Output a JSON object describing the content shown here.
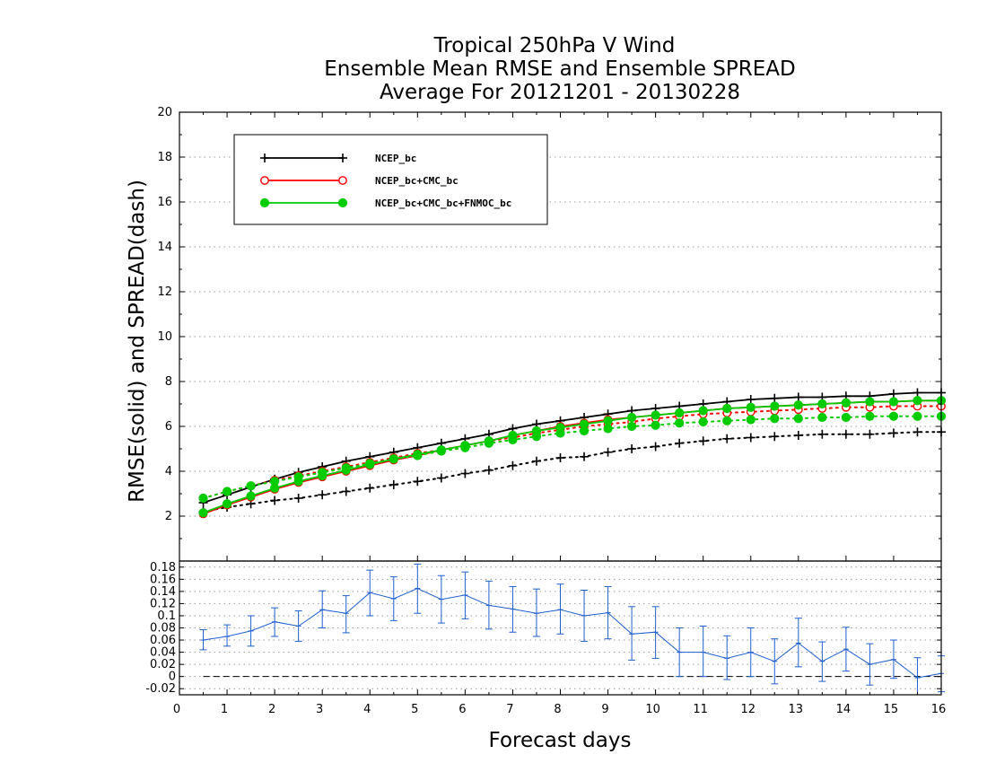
{
  "chart_data": {
    "type": "line",
    "title_lines": [
      "Tropical 250hPa V Wind",
      "Ensemble Mean RMSE and Ensemble SPREAD",
      "Average For 20121201 - 20130228"
    ],
    "xlabel": "Forecast days",
    "ylabel": "RMSE(solid) and SPREAD(dash)",
    "xlim": [
      0,
      16
    ],
    "ylim": [
      0,
      20
    ],
    "xticks": [
      "0",
      "1",
      "2",
      "3",
      "4",
      "5",
      "6",
      "7",
      "8",
      "9",
      "10",
      "11",
      "12",
      "13",
      "14",
      "15",
      "16"
    ],
    "yticks": [
      "2",
      "4",
      "6",
      "8",
      "10",
      "12",
      "14",
      "16",
      "18",
      "20"
    ],
    "grid": true,
    "legend_position": "top-left",
    "x": [
      0.5,
      1,
      1.5,
      2,
      2.5,
      3,
      3.5,
      4,
      4.5,
      5,
      5.5,
      6,
      6.5,
      7,
      7.5,
      8,
      8.5,
      9,
      9.5,
      10,
      10.5,
      11,
      11.5,
      12,
      12.5,
      13,
      13.5,
      14,
      14.5,
      15,
      15.5,
      16
    ],
    "series": [
      {
        "name": "NCEP_bc",
        "color": "#000000",
        "marker": "plus",
        "rmse": [
          2.6,
          2.95,
          3.3,
          3.65,
          3.95,
          4.2,
          4.45,
          4.65,
          4.85,
          5.05,
          5.25,
          5.45,
          5.65,
          5.9,
          6.1,
          6.25,
          6.4,
          6.55,
          6.7,
          6.8,
          6.9,
          7.0,
          7.1,
          7.2,
          7.25,
          7.3,
          7.3,
          7.35,
          7.35,
          7.45,
          7.5,
          7.5
        ],
        "spread": [
          2.2,
          2.4,
          2.55,
          2.7,
          2.8,
          2.95,
          3.1,
          3.25,
          3.4,
          3.55,
          3.7,
          3.9,
          4.05,
          4.25,
          4.45,
          4.6,
          4.65,
          4.85,
          5.0,
          5.1,
          5.25,
          5.35,
          5.45,
          5.5,
          5.55,
          5.6,
          5.65,
          5.65,
          5.65,
          5.7,
          5.75,
          5.75
        ]
      },
      {
        "name": "NCEP_bc+CMC_bc",
        "color": "#ff0000",
        "marker": "open-circle",
        "rmse": [
          2.1,
          2.5,
          2.85,
          3.2,
          3.5,
          3.75,
          4.0,
          4.25,
          4.5,
          4.7,
          4.95,
          5.15,
          5.35,
          5.6,
          5.8,
          6.0,
          6.15,
          6.3,
          6.4,
          6.5,
          6.6,
          6.7,
          6.8,
          6.85,
          6.9,
          6.95,
          7.0,
          7.05,
          7.1,
          7.1,
          7.15,
          7.15
        ],
        "spread": [
          2.8,
          3.1,
          3.35,
          3.6,
          3.8,
          4.0,
          4.2,
          4.4,
          4.6,
          4.8,
          4.95,
          5.15,
          5.35,
          5.5,
          5.7,
          5.85,
          6.0,
          6.1,
          6.2,
          6.35,
          6.45,
          6.55,
          6.6,
          6.65,
          6.7,
          6.75,
          6.8,
          6.85,
          6.85,
          6.9,
          6.9,
          6.9
        ]
      },
      {
        "name": "NCEP_bc+CMC_bc+FNMOC_bc",
        "color": "#00cc00",
        "marker": "filled-circle",
        "rmse": [
          2.15,
          2.55,
          2.9,
          3.25,
          3.55,
          3.8,
          4.05,
          4.3,
          4.55,
          4.75,
          4.95,
          5.15,
          5.35,
          5.6,
          5.8,
          5.95,
          6.1,
          6.25,
          6.4,
          6.5,
          6.6,
          6.7,
          6.8,
          6.85,
          6.9,
          6.95,
          7.0,
          7.05,
          7.1,
          7.1,
          7.15,
          7.15
        ],
        "spread": [
          2.8,
          3.1,
          3.35,
          3.55,
          3.75,
          3.95,
          4.15,
          4.35,
          4.55,
          4.7,
          4.9,
          5.05,
          5.25,
          5.4,
          5.55,
          5.7,
          5.8,
          5.9,
          6.0,
          6.05,
          6.15,
          6.2,
          6.25,
          6.3,
          6.35,
          6.35,
          6.4,
          6.4,
          6.45,
          6.45,
          6.45,
          6.45
        ]
      }
    ],
    "difference_panel": {
      "type": "line",
      "ylim": [
        -0.03,
        0.19
      ],
      "yticks": [
        "-0.02",
        "0",
        "0.02",
        "0.04",
        "0.06",
        "0.08",
        "0.1",
        "0.12",
        "0.14",
        "0.16",
        "0.18"
      ],
      "color": "#1e5fd0",
      "zero_line": true,
      "values": [
        0.06,
        0.066,
        0.075,
        0.09,
        0.083,
        0.11,
        0.104,
        0.138,
        0.128,
        0.145,
        0.127,
        0.134,
        0.117,
        0.111,
        0.104,
        0.11,
        0.1,
        0.105,
        0.07,
        0.073,
        0.04,
        0.04,
        0.03,
        0.04,
        0.025,
        0.055,
        0.025,
        0.045,
        0.02,
        0.028,
        -0.002,
        0.005
      ],
      "err_low": [
        0.044,
        0.05,
        0.05,
        0.066,
        0.058,
        0.08,
        0.072,
        0.1,
        0.092,
        0.104,
        0.088,
        0.095,
        0.078,
        0.073,
        0.066,
        0.07,
        0.058,
        0.062,
        0.027,
        0.03,
        0.0,
        0.0,
        -0.005,
        0.0,
        -0.012,
        0.016,
        -0.008,
        0.009,
        -0.014,
        -0.003,
        -0.03,
        -0.025
      ],
      "err_high": [
        0.077,
        0.085,
        0.1,
        0.113,
        0.108,
        0.141,
        0.133,
        0.175,
        0.164,
        0.185,
        0.166,
        0.172,
        0.157,
        0.148,
        0.144,
        0.152,
        0.142,
        0.148,
        0.115,
        0.115,
        0.08,
        0.083,
        0.067,
        0.08,
        0.062,
        0.096,
        0.057,
        0.081,
        0.054,
        0.06,
        0.031,
        0.034
      ]
    }
  }
}
